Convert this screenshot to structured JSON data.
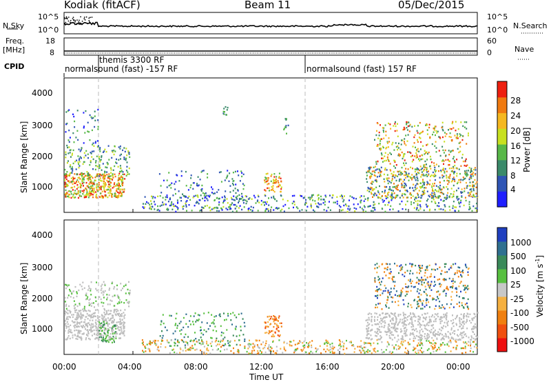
{
  "header": {
    "station": "Kodiak (fitACF)",
    "beam": "Beam 11",
    "date": "05/Dec/2015"
  },
  "top_panel": {
    "left_label": "N.Sky",
    "right_label": "N.Search",
    "left_ticks": [
      "10^5",
      "10^0"
    ],
    "right_ticks": [
      "10^5",
      "10^0"
    ]
  },
  "freq_panel": {
    "left_label_line1": "Freq.",
    "left_label_line2": "[MHz]",
    "right_label": "Nave",
    "left_ticks": [
      "18",
      "8"
    ],
    "right_ticks": [
      "60",
      "0"
    ]
  },
  "cpid_panel": {
    "label": "CPID",
    "programs": [
      {
        "name": "normalsound (fast) -157 RF",
        "start": "00:00"
      },
      {
        "name": "themis 3300 RF",
        "start": "02:00"
      },
      {
        "name": "normalsound (fast) 157 RF",
        "start": "14:00"
      }
    ]
  },
  "colors": {
    "power_scale": [
      "#1f1fff",
      "#2f55b5",
      "#3a8a6a",
      "#58b848",
      "#c8e020",
      "#f5b820",
      "#f07a10",
      "#ee2010"
    ],
    "velocity_scale": [
      "#ee1010",
      "#f05010",
      "#f08010",
      "#f5b040",
      "#c8c8c8",
      "#58c040",
      "#3a8a5a",
      "#2f7090",
      "#1f3fbf"
    ],
    "ground_scatter": "#bdbdbd"
  },
  "chart_data": [
    {
      "type": "heatmap",
      "name": "power",
      "ylabel": "Slant Range [km]",
      "xlabel": "",
      "yticks": [
        "1000",
        "2000",
        "3000",
        "4000"
      ],
      "ylim": [
        200,
        4600
      ],
      "xticks": [],
      "colorbar_label": "Power [dB]",
      "colorbar_ticks": [
        "4",
        "8",
        "12",
        "16",
        "20",
        "24",
        "28"
      ],
      "clim": [
        0,
        32
      ]
    },
    {
      "type": "heatmap",
      "name": "velocity",
      "ylabel": "Slant Range [km]",
      "xlabel": "Time UT",
      "yticks": [
        "1000",
        "2000",
        "3000",
        "4000"
      ],
      "ylim": [
        200,
        4600
      ],
      "xticks": [
        "00:00",
        "04:00",
        "08:00",
        "12:00",
        "16:00",
        "20:00",
        "00:00"
      ],
      "colorbar_label_main": "Velocity",
      "colorbar_label_unit": "[m s",
      "colorbar_label_exp": "-1",
      "colorbar_label_close": "]",
      "colorbar_ticks": [
        "1000",
        "500",
        "100",
        "25",
        "-25",
        "-100",
        "-500",
        "-1000"
      ]
    }
  ]
}
